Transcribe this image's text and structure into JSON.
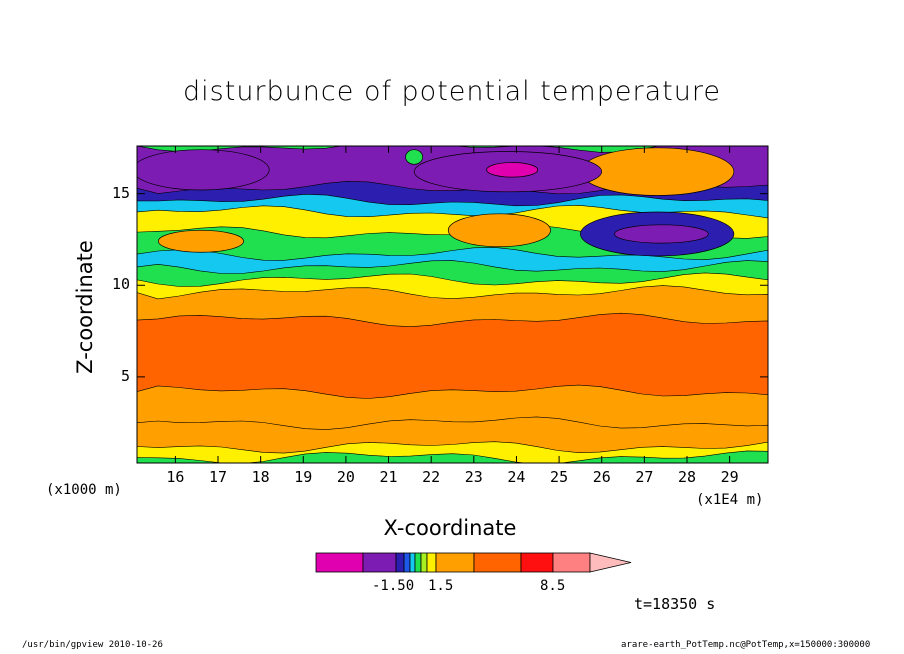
{
  "chart_data": {
    "type": "heatmap",
    "title": "disturbunce of potential temperature",
    "xlabel": "X-coordinate",
    "ylabel": "Z-coordinate",
    "x_unit_left": "(x1000 m)",
    "x_unit_right": "(x1E4 m)",
    "xlim": [
      15.1,
      29.9
    ],
    "ylim": [
      0.3,
      17.6
    ],
    "x_ticks": [
      "16",
      "17",
      "18",
      "19",
      "20",
      "21",
      "22",
      "23",
      "24",
      "25",
      "26",
      "27",
      "28",
      "29"
    ],
    "x_tick_values": [
      16,
      17,
      18,
      19,
      20,
      21,
      22,
      23,
      24,
      25,
      26,
      27,
      28,
      29
    ],
    "y_ticks": [
      "5",
      "10",
      "15"
    ],
    "y_tick_values": [
      5,
      10,
      15
    ],
    "colorbar": {
      "colors": [
        "#e000b0",
        "#7d1cb3",
        "#2c1fb0",
        "#1d58e8",
        "#15c8f0",
        "#20e050",
        "#a8f020",
        "#fff000",
        "#ffa000",
        "#ff6400",
        "#ff1010",
        "#ff8080",
        "#ffbcbc"
      ],
      "tick_labels": [
        "-1.50",
        "1.5",
        "8.5"
      ],
      "tick_values": [
        -1.5,
        1.5,
        8.5
      ]
    },
    "bands": [
      {
        "z_top": 0.6,
        "color": "#20e050",
        "level": 1
      },
      {
        "z_top": 1.2,
        "color": "#fff000",
        "level": 1
      },
      {
        "z_top": 2.5,
        "color": "#ffa000",
        "level": 3
      },
      {
        "z_top": 4.2,
        "color": "#ffa000",
        "level": 4
      },
      {
        "z_top": 8.1,
        "color": "#ff6400",
        "level": 6
      },
      {
        "z_top": 9.6,
        "color": "#ffa000",
        "level": 3
      },
      {
        "z_top": 10.3,
        "color": "#fff000",
        "level": 1
      },
      {
        "z_top": 11.0,
        "color": "#20e050",
        "level": 0
      },
      {
        "z_top": 11.7,
        "color": "#15c8f0",
        "level": -0.5
      },
      {
        "z_top": 12.9,
        "color": "#20e050",
        "level": 0
      },
      {
        "z_top": 14.0,
        "color": "#fff000",
        "level": 1
      },
      {
        "z_top": 14.6,
        "color": "#15c8f0",
        "level": -0.5
      },
      {
        "z_top": 15.3,
        "color": "#2c1fb0",
        "level": -1.5
      },
      {
        "z_top": 17.6,
        "color": "#7d1cb3",
        "level": -2
      }
    ],
    "features": [
      {
        "cx": 23.6,
        "cz": 13.0,
        "rx": 1.2,
        "rz": 0.9,
        "color": "#ffa000",
        "level": 3
      },
      {
        "cx": 27.3,
        "cz": 16.2,
        "rx": 1.8,
        "rz": 1.3,
        "color": "#ffa000",
        "level": 3
      },
      {
        "cx": 27.3,
        "cz": 12.8,
        "rx": 1.8,
        "rz": 1.2,
        "color": "#2c1fb0",
        "level": -1.5
      },
      {
        "cx": 27.4,
        "cz": 12.8,
        "rx": 1.1,
        "rz": 0.5,
        "color": "#7d1cb3",
        "level": -2
      },
      {
        "cx": 23.8,
        "cz": 16.2,
        "rx": 2.2,
        "rz": 1.1,
        "color": "#7d1cb3",
        "level": -2
      },
      {
        "cx": 23.9,
        "cz": 16.3,
        "rx": 0.6,
        "rz": 0.4,
        "color": "#e000b0",
        "level": -3
      },
      {
        "cx": 16.6,
        "cz": 16.3,
        "rx": 1.6,
        "rz": 1.1,
        "color": "#7d1cb3",
        "level": -2
      },
      {
        "cx": 16.6,
        "cz": 12.4,
        "rx": 1.0,
        "rz": 0.6,
        "color": "#ffa000",
        "level": 3
      },
      {
        "cx": 21.6,
        "cz": 17.0,
        "rx": 0.2,
        "rz": 0.4,
        "color": "#20e050",
        "level": 0
      }
    ]
  },
  "time_label": "t=18350 s",
  "footer_left": "/usr/bin/gpview   2010-10-26",
  "footer_right": "arare-earth_PotTemp.nc@PotTemp,x=150000:300000"
}
